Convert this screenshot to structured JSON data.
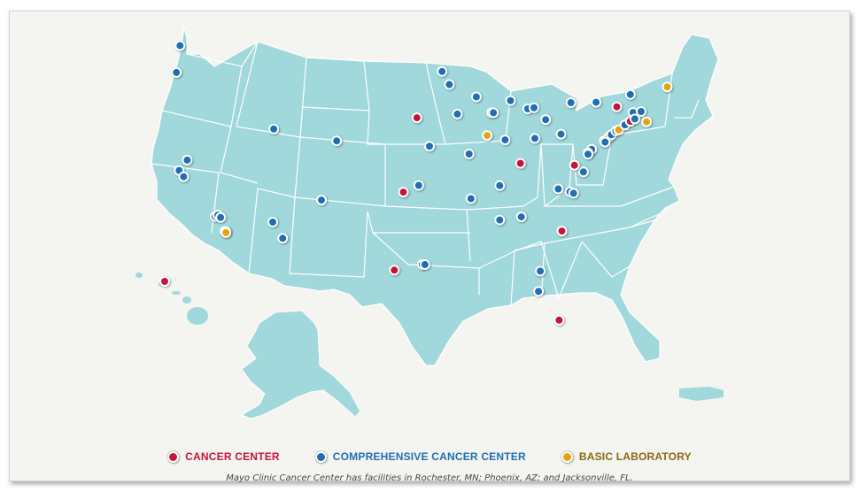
{
  "colors": {
    "land": "#a0d8db",
    "border": "#ffffff",
    "cancer_center": "#c4163c",
    "comprehensive": "#1f6fb3",
    "basic_lab": "#e2a50f"
  },
  "legend": {
    "cancer_center": "CANCER CENTER",
    "comprehensive": "COMPREHENSIVE CANCER CENTER",
    "basic_lab": "BASIC LABORATORY"
  },
  "footnote": "Mayo Clinic Cancer Center has facilities in Rochester, MN; Phoenix, AZ; and Jacksonville, FL.",
  "markers": [
    {
      "type": "comprehensive",
      "lon": -122.3,
      "lat": 47.6
    },
    {
      "type": "comprehensive",
      "lon": -122.7,
      "lat": 45.5
    },
    {
      "type": "comprehensive",
      "lon": -122.4,
      "lat": 37.8
    },
    {
      "type": "comprehensive",
      "lon": -121.5,
      "lat": 38.6
    },
    {
      "type": "comprehensive",
      "lon": -121.9,
      "lat": 37.3
    },
    {
      "type": "comprehensive",
      "lon": -118.4,
      "lat": 34.1
    },
    {
      "type": "comprehensive",
      "lon": -118.1,
      "lat": 34.2
    },
    {
      "type": "comprehensive",
      "lon": -117.8,
      "lat": 34.0
    },
    {
      "type": "comprehensive",
      "lon": -117.2,
      "lat": 32.9
    },
    {
      "type": "basic_lab",
      "lon": -117.3,
      "lat": 32.9
    },
    {
      "type": "basic_lab",
      "lon": -117.2,
      "lat": 32.8
    },
    {
      "type": "comprehensive",
      "lon": -111.9,
      "lat": 40.8
    },
    {
      "type": "comprehensive",
      "lon": -112.0,
      "lat": 33.5
    },
    {
      "type": "comprehensive",
      "lon": -110.9,
      "lat": 32.2
    },
    {
      "type": "comprehensive",
      "lon": -106.6,
      "lat": 35.1
    },
    {
      "type": "comprehensive",
      "lon": -104.9,
      "lat": 39.7
    },
    {
      "type": "cancer_center",
      "lon": -96.0,
      "lat": 41.3
    },
    {
      "type": "cancer_center",
      "lon": -97.5,
      "lat": 35.5
    },
    {
      "type": "comprehensive",
      "lon": -94.6,
      "lat": 39.1
    },
    {
      "type": "comprehensive",
      "lon": -95.8,
      "lat": 36.0
    },
    {
      "type": "comprehensive",
      "lon": -95.4,
      "lat": 29.8
    },
    {
      "type": "comprehensive",
      "lon": -95.1,
      "lat": 29.8
    },
    {
      "type": "cancer_center",
      "lon": -98.5,
      "lat": 29.4
    },
    {
      "type": "comprehensive",
      "lon": -93.2,
      "lat": 45.0
    },
    {
      "type": "comprehensive",
      "lon": -92.4,
      "lat": 44.0
    },
    {
      "type": "comprehensive",
      "lon": -89.4,
      "lat": 43.1
    },
    {
      "type": "comprehensive",
      "lon": -91.5,
      "lat": 41.7
    },
    {
      "type": "comprehensive",
      "lon": -87.7,
      "lat": 41.9
    },
    {
      "type": "comprehensive",
      "lon": -87.5,
      "lat": 41.9
    },
    {
      "type": "comprehensive",
      "lon": -90.2,
      "lat": 38.6
    },
    {
      "type": "comprehensive",
      "lon": -90.0,
      "lat": 35.1
    },
    {
      "type": "basic_lab",
      "lon": -88.2,
      "lat": 40.1
    },
    {
      "type": "comprehensive",
      "lon": -86.2,
      "lat": 39.8
    },
    {
      "type": "cancer_center",
      "lon": -84.5,
      "lat": 38.0
    },
    {
      "type": "comprehensive",
      "lon": -86.8,
      "lat": 36.2
    },
    {
      "type": "comprehensive",
      "lon": -86.8,
      "lat": 33.5
    },
    {
      "type": "comprehensive",
      "lon": -84.4,
      "lat": 33.8
    },
    {
      "type": "comprehensive",
      "lon": -83.7,
      "lat": 42.3
    },
    {
      "type": "comprehensive",
      "lon": -83.0,
      "lat": 42.4
    },
    {
      "type": "comprehensive",
      "lon": -85.6,
      "lat": 42.9
    },
    {
      "type": "comprehensive",
      "lon": -81.7,
      "lat": 41.5
    },
    {
      "type": "comprehensive",
      "lon": -82.9,
      "lat": 40.0
    },
    {
      "type": "comprehensive",
      "lon": -80.0,
      "lat": 40.4
    },
    {
      "type": "comprehensive",
      "lon": -78.9,
      "lat": 42.9
    },
    {
      "type": "comprehensive",
      "lon": -79.0,
      "lat": 35.9
    },
    {
      "type": "comprehensive",
      "lon": -78.6,
      "lat": 35.8
    },
    {
      "type": "comprehensive",
      "lon": -80.3,
      "lat": 36.1
    },
    {
      "type": "comprehensive",
      "lon": -77.5,
      "lat": 37.5
    },
    {
      "type": "cancer_center",
      "lon": -78.5,
      "lat": 38.0
    },
    {
      "type": "cancer_center",
      "lon": -79.9,
      "lat": 32.8
    },
    {
      "type": "comprehensive",
      "lon": -82.3,
      "lat": 29.6
    },
    {
      "type": "comprehensive",
      "lon": -82.5,
      "lat": 28.0
    },
    {
      "type": "cancer_center",
      "lon": -80.2,
      "lat": 25.8
    },
    {
      "type": "comprehensive",
      "lon": -76.6,
      "lat": 39.3
    },
    {
      "type": "comprehensive",
      "lon": -77.0,
      "lat": 39.0
    },
    {
      "type": "comprehensive",
      "lon": -77.0,
      "lat": 38.9
    },
    {
      "type": "cancer_center",
      "lon": -75.2,
      "lat": 40.0
    },
    {
      "type": "basic_lab",
      "lon": -74.7,
      "lat": 40.3
    },
    {
      "type": "comprehensive",
      "lon": -74.4,
      "lat": 40.5
    },
    {
      "type": "comprehensive",
      "lon": -75.1,
      "lat": 39.9
    },
    {
      "type": "comprehensive",
      "lon": -76.1,
      "lat": 43.0
    },
    {
      "type": "cancer_center",
      "lon": -73.8,
      "lat": 42.7
    },
    {
      "type": "comprehensive",
      "lon": -73.9,
      "lat": 40.8
    },
    {
      "type": "basic_lab",
      "lon": -73.6,
      "lat": 40.9
    },
    {
      "type": "comprehensive",
      "lon": -72.9,
      "lat": 41.3
    },
    {
      "type": "cancer_center",
      "lon": -72.3,
      "lat": 41.6
    },
    {
      "type": "comprehensive",
      "lon": -72.0,
      "lat": 42.3
    },
    {
      "type": "comprehensive",
      "lon": -71.1,
      "lat": 42.4
    },
    {
      "type": "basic_lab",
      "lon": -70.5,
      "lat": 41.6
    },
    {
      "type": "comprehensive",
      "lon": -72.3,
      "lat": 43.7
    },
    {
      "type": "basic_lab",
      "lon": -68.2,
      "lat": 44.4
    },
    {
      "type": "comprehensive",
      "lon": -71.8,
      "lat": 41.8
    },
    {
      "type": "cancer_center",
      "lon": -157.9,
      "lat": 21.3
    }
  ]
}
